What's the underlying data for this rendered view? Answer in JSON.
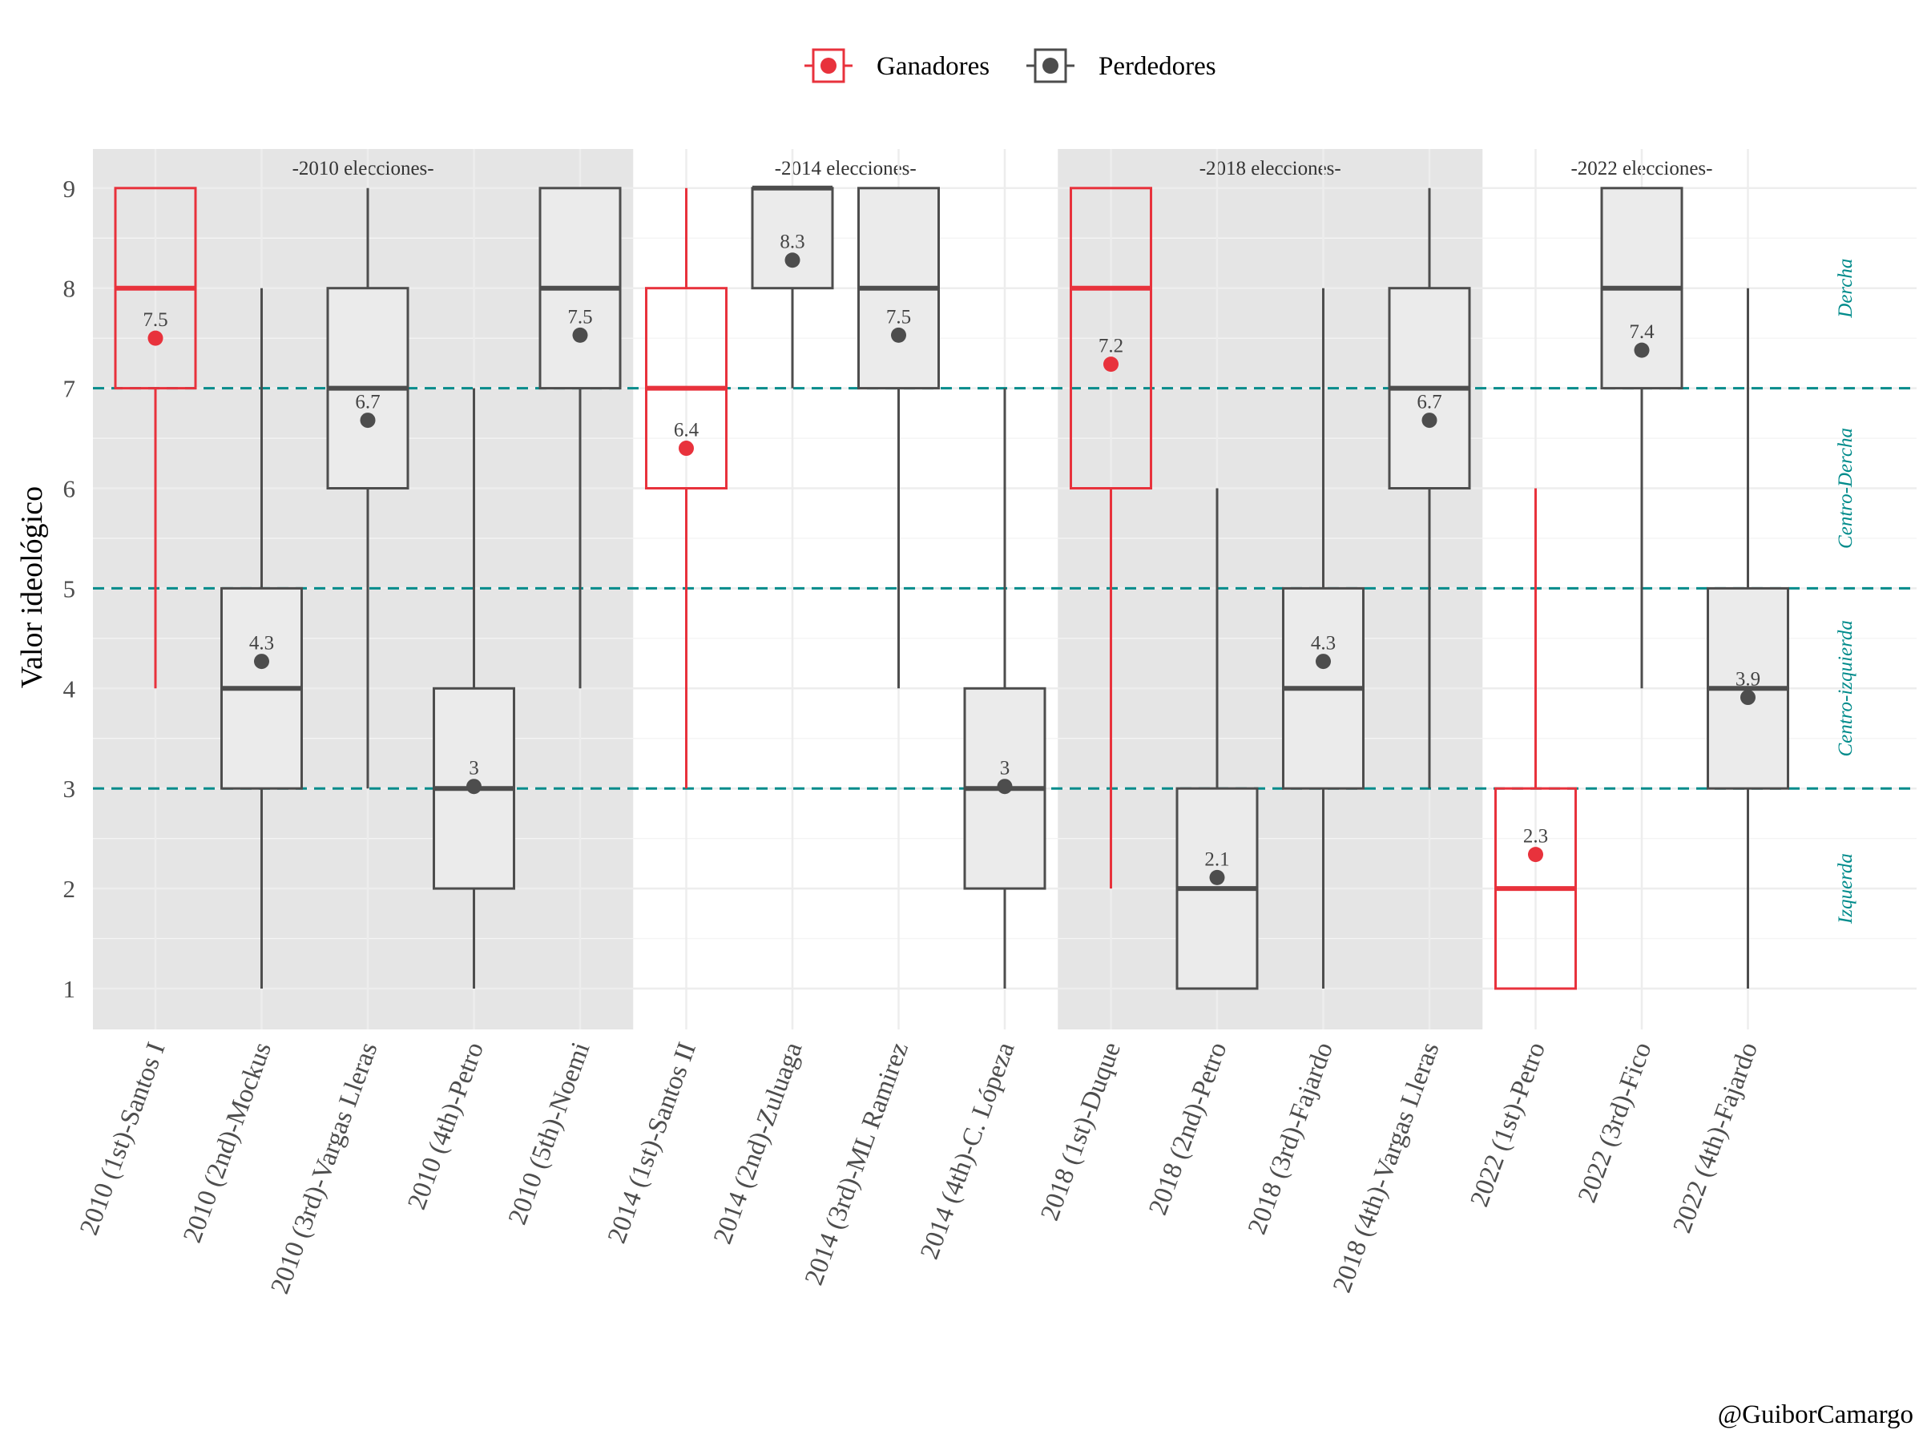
{
  "chart_data": {
    "type": "box",
    "ylabel": "Valor ideológico",
    "xlabel": "",
    "ylim": [
      1,
      9
    ],
    "yticks": [
      1,
      2,
      3,
      4,
      5,
      6,
      7,
      8,
      9
    ],
    "legend": {
      "position": "top",
      "entries": [
        {
          "label": "Ganadores",
          "color": "#E8323C"
        },
        {
          "label": "Perdedores",
          "color": "#4D4D4D"
        }
      ]
    },
    "colors": {
      "winner": "#E8323C",
      "loser": "#4D4D4D",
      "reference_line": "#008B8B",
      "shaded_panel": "#E5E5E5",
      "box_fill": "#EBEBEB"
    },
    "panels": [
      {
        "label": "-2010 elecciones-",
        "shaded": true,
        "categories": [
          "2010 (1st)-Santos I",
          "2010 (2nd)-Mockus",
          "2010 (3rd)-Vargas Lleras",
          "2010 (4th)-Petro",
          "2010 (5th)-Noemi"
        ]
      },
      {
        "label": "-2014 elecciones-",
        "shaded": false,
        "categories": [
          "2014 (1st)-Santos II",
          "2014 (2nd)-Zuluaga",
          "2014 (3rd)-ML Ramirez",
          "2014 (4th)-C. Lópeza"
        ]
      },
      {
        "label": "-2018 elecciones-",
        "shaded": true,
        "categories": [
          "2018 (1st)-Duque",
          "2018 (2nd)-Petro",
          "2018 (3rd)-Fajardo",
          "2018 (4th)-Vargas Lleras"
        ]
      },
      {
        "label": "-2022 elecciones-",
        "shaded": false,
        "categories": [
          "2022 (1st)-Petro",
          "2022 (3rd)-Fico",
          "2022 (4th)-Fajardo"
        ]
      }
    ],
    "boxes": [
      {
        "category": "2010 (1st)-Santos I",
        "group": "Ganadores",
        "min": 4,
        "q1": 7,
        "median": 8,
        "q3": 9,
        "max": 9,
        "mean": 7.5,
        "mean_label": "7.5"
      },
      {
        "category": "2010 (2nd)-Mockus",
        "group": "Perdedores",
        "min": 1,
        "q1": 3,
        "median": 4,
        "q3": 5,
        "max": 8,
        "mean": 4.27,
        "mean_label": "4.3"
      },
      {
        "category": "2010 (3rd)-Vargas Lleras",
        "group": "Perdedores",
        "min": 3,
        "q1": 6,
        "median": 7,
        "q3": 8,
        "max": 9,
        "mean": 6.68,
        "mean_label": "6.7"
      },
      {
        "category": "2010 (4th)-Petro",
        "group": "Perdedores",
        "min": 1,
        "q1": 2,
        "median": 3,
        "q3": 4,
        "max": 7,
        "mean": 3.02,
        "mean_label": "3"
      },
      {
        "category": "2010 (5th)-Noemi",
        "group": "Perdedores",
        "min": 4,
        "q1": 7,
        "median": 8,
        "q3": 9,
        "max": 9,
        "mean": 7.53,
        "mean_label": "7.5"
      },
      {
        "category": "2014 (1st)-Santos II",
        "group": "Ganadores",
        "min": 3,
        "q1": 6,
        "median": 7,
        "q3": 8,
        "max": 9,
        "mean": 6.4,
        "mean_label": "6.4"
      },
      {
        "category": "2014 (2nd)-Zuluaga",
        "group": "Perdedores",
        "min": 7,
        "q1": 8,
        "median": 9,
        "q3": 9,
        "max": 9,
        "mean": 8.28,
        "mean_label": "8.3"
      },
      {
        "category": "2014 (3rd)-ML Ramirez",
        "group": "Perdedores",
        "min": 4,
        "q1": 7,
        "median": 8,
        "q3": 9,
        "max": 9,
        "mean": 7.53,
        "mean_label": "7.5"
      },
      {
        "category": "2014 (4th)-C. Lópeza",
        "group": "Perdedores",
        "min": 1,
        "q1": 2,
        "median": 3,
        "q3": 4,
        "max": 7,
        "mean": 3.02,
        "mean_label": "3"
      },
      {
        "category": "2018 (1st)-Duque",
        "group": "Ganadores",
        "min": 2,
        "q1": 6,
        "median": 8,
        "q3": 9,
        "max": 9,
        "mean": 7.24,
        "mean_label": "7.2"
      },
      {
        "category": "2018 (2nd)-Petro",
        "group": "Perdedores",
        "min": 1,
        "q1": 1,
        "median": 2,
        "q3": 3,
        "max": 6,
        "mean": 2.11,
        "mean_label": "2.1"
      },
      {
        "category": "2018 (3rd)-Fajardo",
        "group": "Perdedores",
        "min": 1,
        "q1": 3,
        "median": 4,
        "q3": 5,
        "max": 8,
        "mean": 4.27,
        "mean_label": "4.3"
      },
      {
        "category": "2018 (4th)-Vargas Lleras",
        "group": "Perdedores",
        "min": 3,
        "q1": 6,
        "median": 7,
        "q3": 8,
        "max": 9,
        "mean": 6.68,
        "mean_label": "6.7"
      },
      {
        "category": "2022 (1st)-Petro",
        "group": "Ganadores",
        "min": 1,
        "q1": 1,
        "median": 2,
        "q3": 3,
        "max": 6,
        "mean": 2.34,
        "mean_label": "2.3"
      },
      {
        "category": "2022 (3rd)-Fico",
        "group": "Perdedores",
        "min": 4,
        "q1": 7,
        "median": 8,
        "q3": 9,
        "max": 9,
        "mean": 7.38,
        "mean_label": "7.4"
      },
      {
        "category": "2022 (4th)-Fajardo",
        "group": "Perdedores",
        "min": 1,
        "q1": 3,
        "median": 4,
        "q3": 5,
        "max": 8,
        "mean": 3.91,
        "mean_label": "3.9"
      }
    ],
    "reference_lines": [
      3,
      5,
      7
    ],
    "region_labels": [
      {
        "label": "Dercha",
        "y": 8
      },
      {
        "label": "Centro-Dercha",
        "y": 6
      },
      {
        "label": "Centro-izquierda",
        "y": 4
      },
      {
        "label": "Izquerda",
        "y": 2
      }
    ],
    "caption": "@GuiborCamargo"
  }
}
